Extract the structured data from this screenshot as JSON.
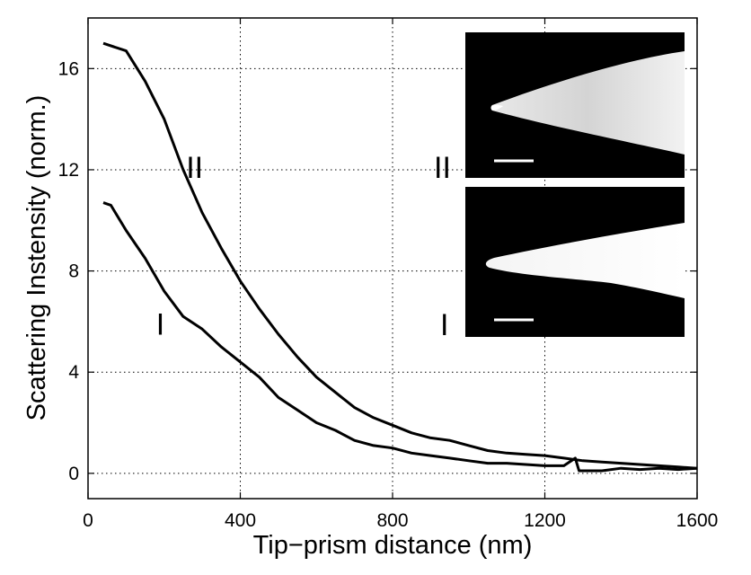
{
  "chart_data": {
    "type": "line",
    "title": "",
    "xlabel": "Tip−prism distance (nm)",
    "ylabel": "Scattering Instensity (norm.)",
    "xlim": [
      0,
      1600
    ],
    "ylim": [
      -1,
      18
    ],
    "xticks": [
      0,
      400,
      800,
      1200,
      1600
    ],
    "yticks": [
      0,
      4,
      8,
      12,
      16
    ],
    "grid": true,
    "line_color": "#000000",
    "series": [
      {
        "name": "II",
        "x": [
          40,
          100,
          150,
          200,
          250,
          300,
          350,
          400,
          450,
          500,
          550,
          600,
          650,
          700,
          750,
          800,
          850,
          900,
          950,
          1000,
          1050,
          1100,
          1150,
          1200,
          1250,
          1300,
          1350,
          1400,
          1450,
          1500,
          1550,
          1600
        ],
        "y": [
          17.0,
          16.7,
          15.5,
          14.0,
          12.0,
          10.3,
          8.9,
          7.6,
          6.5,
          5.5,
          4.6,
          3.8,
          3.2,
          2.6,
          2.2,
          1.9,
          1.6,
          1.4,
          1.3,
          1.1,
          0.9,
          0.8,
          0.75,
          0.7,
          0.6,
          0.5,
          0.45,
          0.4,
          0.35,
          0.3,
          0.25,
          0.2
        ]
      },
      {
        "name": "I",
        "x": [
          40,
          60,
          100,
          150,
          200,
          250,
          300,
          350,
          400,
          450,
          500,
          550,
          600,
          650,
          700,
          750,
          800,
          850,
          900,
          950,
          1000,
          1050,
          1100,
          1150,
          1200,
          1250,
          1280,
          1290,
          1300,
          1350,
          1400,
          1450,
          1500,
          1550,
          1600
        ],
        "y": [
          10.7,
          10.6,
          9.6,
          8.5,
          7.2,
          6.2,
          5.7,
          5.0,
          4.4,
          3.8,
          3.0,
          2.5,
          2.0,
          1.7,
          1.3,
          1.1,
          1.0,
          0.8,
          0.7,
          0.6,
          0.5,
          0.4,
          0.4,
          0.35,
          0.3,
          0.3,
          0.6,
          0.1,
          0.1,
          0.1,
          0.2,
          0.15,
          0.2,
          0.15,
          0.2
        ]
      }
    ],
    "curve_labels": [
      {
        "text": "II",
        "x": 280,
        "y": 12.1
      },
      {
        "text": "I",
        "x": 190,
        "y": 5.9
      }
    ],
    "insets": [
      {
        "label": "II",
        "description": "grayscale micrograph of tip with scale bar"
      },
      {
        "label": "I",
        "description": "grayscale micrograph of tip with scale bar"
      }
    ]
  }
}
